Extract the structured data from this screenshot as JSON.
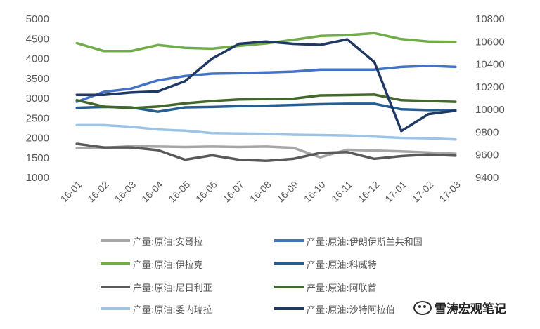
{
  "chart_data": {
    "type": "line",
    "title": "",
    "categories": [
      "16-01",
      "16-02",
      "16-03",
      "16-04",
      "16-05",
      "16-06",
      "16-07",
      "16-08",
      "16-09",
      "16-10",
      "16-11",
      "16-12",
      "17-01",
      "17-02",
      "17-03"
    ],
    "y_left": {
      "min": 1000,
      "max": 5000,
      "ticks": [
        "5000",
        "4500",
        "4000",
        "3500",
        "3000",
        "2500",
        "2000",
        "1500",
        "1000"
      ]
    },
    "y_right": {
      "min": 9400,
      "max": 10800,
      "ticks": [
        "10800",
        "10600",
        "10400",
        "10200",
        "10000",
        "9800",
        "9600",
        "9400"
      ]
    },
    "series": [
      {
        "name": "产量:原油:安哥拉",
        "axis": "left",
        "color": "#a6a6a6",
        "values": [
          1740,
          1750,
          1790,
          1780,
          1770,
          1780,
          1770,
          1780,
          1750,
          1510,
          1700,
          1680,
          1660,
          1630,
          1600
        ]
      },
      {
        "name": "产量:原油:伊朗伊斯兰共和国",
        "axis": "left",
        "color": "#4472c4",
        "values": [
          2910,
          3160,
          3240,
          3450,
          3560,
          3620,
          3630,
          3650,
          3670,
          3720,
          3720,
          3720,
          3790,
          3820,
          3790
        ]
      },
      {
        "name": "产量:原油:伊拉克",
        "axis": "left",
        "color": "#70ad47",
        "values": [
          4390,
          4190,
          4190,
          4340,
          4270,
          4250,
          4320,
          4380,
          4470,
          4570,
          4590,
          4640,
          4490,
          4430,
          4420
        ]
      },
      {
        "name": "产量:原油:科威特",
        "axis": "left",
        "color": "#255e91",
        "values": [
          2760,
          2780,
          2770,
          2660,
          2770,
          2780,
          2800,
          2810,
          2830,
          2850,
          2860,
          2860,
          2720,
          2700,
          2700
        ]
      },
      {
        "name": "产量:原油:尼日利亚",
        "axis": "left",
        "color": "#595959",
        "values": [
          1850,
          1760,
          1760,
          1690,
          1450,
          1560,
          1450,
          1420,
          1470,
          1620,
          1640,
          1470,
          1540,
          1580,
          1550
        ]
      },
      {
        "name": "产量:原油:阿联酋",
        "axis": "left",
        "color": "#43682b",
        "values": [
          2950,
          2790,
          2750,
          2790,
          2870,
          2930,
          2970,
          2980,
          2990,
          3070,
          3080,
          3090,
          2950,
          2930,
          2910
        ]
      },
      {
        "name": "产量:原油:委内瑞拉",
        "axis": "left",
        "color": "#9dc3e6",
        "values": [
          2320,
          2320,
          2280,
          2210,
          2180,
          2120,
          2110,
          2100,
          2080,
          2070,
          2060,
          2030,
          2000,
          1990,
          1960
        ]
      },
      {
        "name": "产量:原油:沙特阿拉伯",
        "axis": "right",
        "color": "#203864",
        "values": [
          10130,
          10130,
          10150,
          10160,
          10250,
          10450,
          10580,
          10600,
          10580,
          10570,
          10620,
          10420,
          9810,
          9960,
          9990
        ]
      }
    ],
    "legend_position": "bottom"
  },
  "watermark": {
    "text": "雪涛宏观笔记",
    "icon": "wechat-icon"
  }
}
